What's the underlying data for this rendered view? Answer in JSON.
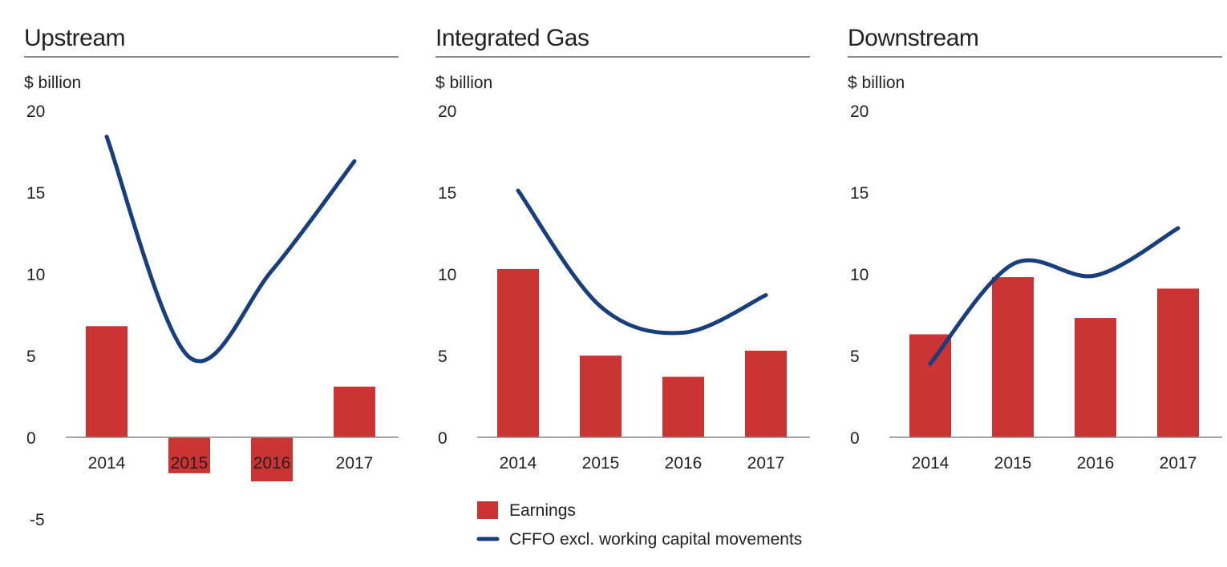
{
  "colors": {
    "earnings": "#cc3333",
    "cffo": "#173e7f",
    "rule": "#888888",
    "axis": "#888888",
    "text": "#222222"
  },
  "legend": {
    "earnings_label": "Earnings",
    "cffo_label": "CFFO excl. working capital movements"
  },
  "chart_data": [
    {
      "type": "bar",
      "title": "Upstream",
      "ylabel": "$ billion",
      "ylim": [
        -5,
        20
      ],
      "yticks": [
        20,
        15,
        10,
        5,
        0,
        -5
      ],
      "categories": [
        "2014",
        "2015",
        "2016",
        "2017"
      ],
      "series": [
        {
          "name": "Earnings",
          "type": "bar",
          "values": [
            6.8,
            -2.2,
            -2.7,
            3.1
          ]
        },
        {
          "name": "CFFO excl. working capital movements",
          "type": "line",
          "values": [
            18.4,
            4.9,
            10.2,
            16.9
          ]
        }
      ]
    },
    {
      "type": "bar",
      "title": "Integrated Gas",
      "ylabel": "$ billion",
      "ylim": [
        0,
        20
      ],
      "yticks": [
        20,
        15,
        10,
        5,
        0
      ],
      "categories": [
        "2014",
        "2015",
        "2016",
        "2017"
      ],
      "series": [
        {
          "name": "Earnings",
          "type": "bar",
          "values": [
            10.3,
            5.0,
            3.7,
            5.3
          ]
        },
        {
          "name": "CFFO excl. working capital movements",
          "type": "line",
          "values": [
            15.1,
            8.0,
            6.4,
            8.7
          ]
        }
      ]
    },
    {
      "type": "bar",
      "title": "Downstream",
      "ylabel": "$ billion",
      "ylim": [
        0,
        20
      ],
      "yticks": [
        20,
        15,
        10,
        5,
        0
      ],
      "categories": [
        "2014",
        "2015",
        "2016",
        "2017"
      ],
      "series": [
        {
          "name": "Earnings",
          "type": "bar",
          "values": [
            6.3,
            9.8,
            7.3,
            9.1
          ]
        },
        {
          "name": "CFFO excl. working capital movements",
          "type": "line",
          "values": [
            4.5,
            10.6,
            9.9,
            12.8
          ]
        }
      ]
    }
  ]
}
